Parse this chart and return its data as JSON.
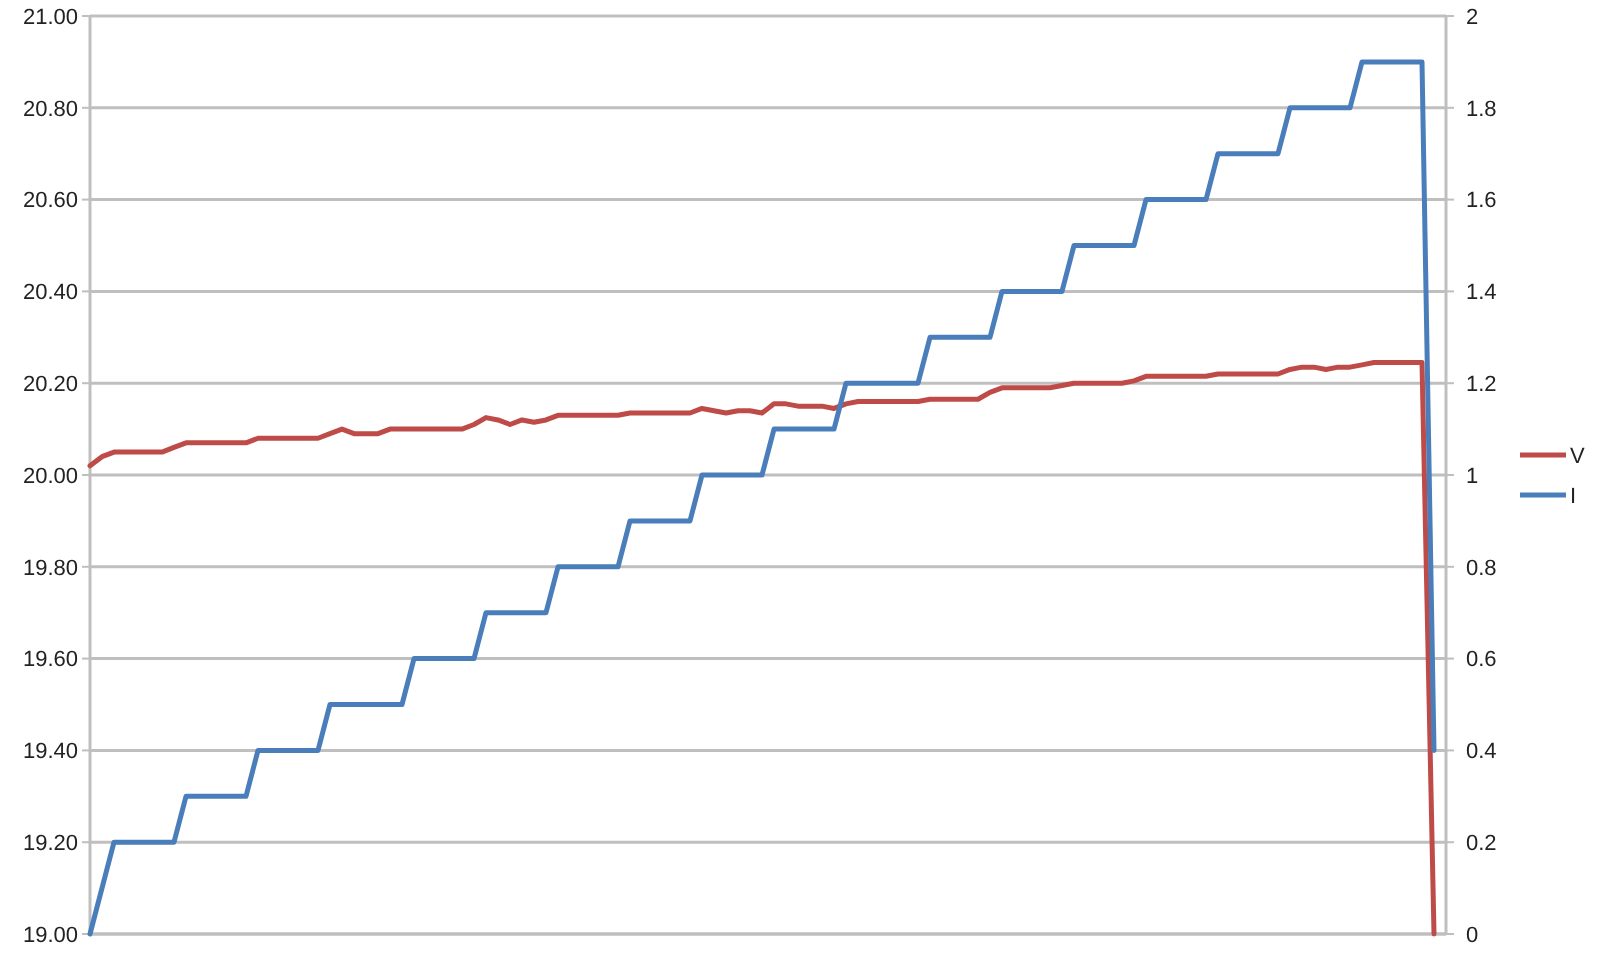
{
  "chart_data": {
    "type": "line",
    "categories": [
      null,
      null,
      null,
      null,
      null,
      null,
      null,
      null,
      null,
      null,
      null,
      null,
      null,
      null,
      null,
      null,
      null,
      null,
      null,
      null,
      null,
      null,
      null,
      null,
      null,
      null,
      null,
      null,
      null,
      null,
      null,
      null,
      null,
      null,
      null,
      null,
      null,
      null,
      null,
      null,
      null,
      null,
      null,
      null,
      null,
      null,
      null,
      null,
      null,
      null,
      null,
      null,
      null,
      null,
      null,
      null,
      null,
      null,
      null,
      null,
      null,
      null,
      null,
      null,
      null,
      null,
      null,
      null,
      null,
      null,
      null,
      null,
      null,
      null,
      null,
      null,
      null,
      null,
      null,
      null,
      null,
      null,
      null,
      null,
      null,
      null,
      null,
      null,
      null,
      null,
      null,
      null,
      null,
      null,
      null,
      null,
      null,
      null,
      null,
      null,
      null,
      null,
      null,
      null,
      null,
      null,
      null,
      null,
      null,
      null,
      null,
      null,
      null,
      null
    ],
    "series": [
      {
        "name": "V",
        "color": "#be4b48",
        "values": [
          20.02,
          20.04,
          20.05,
          20.05,
          20.05,
          20.05,
          20.05,
          20.06,
          20.07,
          20.07,
          20.07,
          20.07,
          20.07,
          20.07,
          20.08,
          20.08,
          20.08,
          20.08,
          20.08,
          20.08,
          20.09,
          20.1,
          20.09,
          20.09,
          20.09,
          20.1,
          20.1,
          20.1,
          20.1,
          20.1,
          20.1,
          20.1,
          20.11,
          20.125,
          20.12,
          20.11,
          20.12,
          20.115,
          20.12,
          20.13,
          20.13,
          20.13,
          20.13,
          20.13,
          20.13,
          20.135,
          20.135,
          20.135,
          20.135,
          20.135,
          20.135,
          20.145,
          20.14,
          20.135,
          20.14,
          20.14,
          20.135,
          20.155,
          20.155,
          20.15,
          20.15,
          20.15,
          20.145,
          20.155,
          20.16,
          20.16,
          20.16,
          20.16,
          20.16,
          20.16,
          20.165,
          20.165,
          20.165,
          20.165,
          20.165,
          20.18,
          20.19,
          20.19,
          20.19,
          20.19,
          20.19,
          20.195,
          20.2,
          20.2,
          20.2,
          20.2,
          20.2,
          20.205,
          20.215,
          20.215,
          20.215,
          20.215,
          20.215,
          20.215,
          20.22,
          20.22,
          20.22,
          20.22,
          20.22,
          20.22,
          20.23,
          20.235,
          20.235,
          20.23,
          20.235,
          20.235,
          20.24,
          20.245,
          20.245,
          20.245,
          20.245,
          20.245,
          19.0,
          null
        ]
      },
      {
        "name": "I",
        "color": "#4a7ebb",
        "axis": "y2",
        "values": [
          0,
          0.1,
          0.2,
          0.2,
          0.2,
          0.2,
          0.2,
          0.2,
          0.3,
          0.3,
          0.3,
          0.3,
          0.3,
          0.3,
          0.4,
          0.4,
          0.4,
          0.4,
          0.4,
          0.4,
          0.5,
          0.5,
          0.5,
          0.5,
          0.5,
          0.5,
          0.5,
          0.6,
          0.6,
          0.6,
          0.6,
          0.6,
          0.6,
          0.7,
          0.7,
          0.7,
          0.7,
          0.7,
          0.7,
          0.8,
          0.8,
          0.8,
          0.8,
          0.8,
          0.8,
          0.9,
          0.9,
          0.9,
          0.9,
          0.9,
          0.9,
          1,
          1,
          1,
          1,
          1,
          1,
          1.1,
          1.1,
          1.1,
          1.1,
          1.1,
          1.1,
          1.2,
          1.2,
          1.2,
          1.2,
          1.2,
          1.2,
          1.2,
          1.3,
          1.3,
          1.3,
          1.3,
          1.3,
          1.3,
          1.4,
          1.4,
          1.4,
          1.4,
          1.4,
          1.4,
          1.5,
          1.5,
          1.5,
          1.5,
          1.5,
          1.5,
          1.6,
          1.6,
          1.6,
          1.6,
          1.6,
          1.6,
          1.7,
          1.7,
          1.7,
          1.7,
          1.7,
          1.7,
          1.8,
          1.8,
          1.8,
          1.8,
          1.8,
          1.8,
          1.9,
          1.9,
          1.9,
          1.9,
          1.9,
          1.9,
          0.4,
          null
        ]
      }
    ],
    "ylim": [
      19,
      21
    ],
    "yticks": [
      {
        "value": 19,
        "label": "19.00"
      },
      {
        "value": 19.2,
        "label": "19.20"
      },
      {
        "value": 19.4,
        "label": "19.40"
      },
      {
        "value": 19.6,
        "label": "19.60"
      },
      {
        "value": 19.8,
        "label": "19.80"
      },
      {
        "value": 20,
        "label": "20.00"
      },
      {
        "value": 20.2,
        "label": "20.20"
      },
      {
        "value": 20.4,
        "label": "20.40"
      },
      {
        "value": 20.6,
        "label": "20.60"
      },
      {
        "value": 20.8,
        "label": "20.80"
      },
      {
        "value": 21,
        "label": "21.00"
      }
    ],
    "y2lim": [
      0,
      2
    ],
    "y2ticks": [
      0,
      0.2,
      0.4,
      0.6,
      0.8,
      1,
      1.2,
      1.4,
      1.6,
      1.8,
      2
    ],
    "grid": "y",
    "legend": "right",
    "marker": "none",
    "line_style": "solid"
  }
}
